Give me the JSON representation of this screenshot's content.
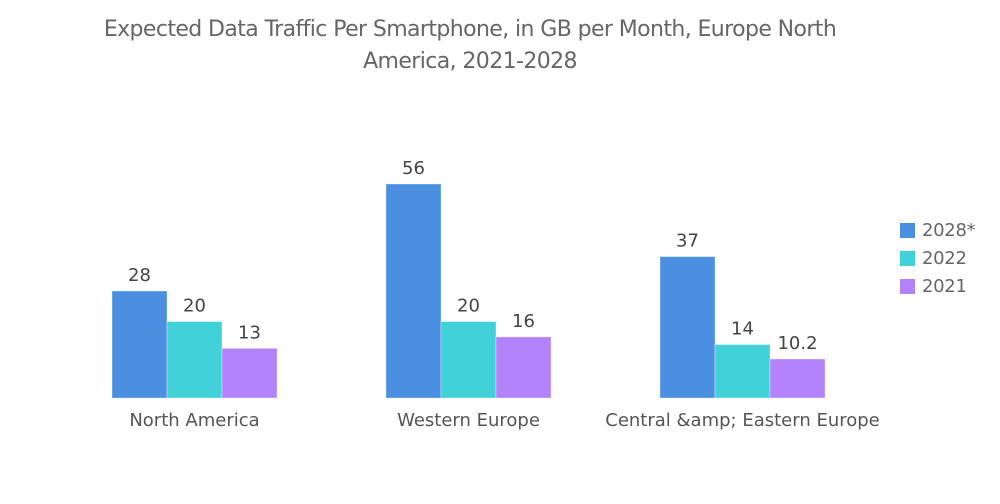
{
  "chart_data": {
    "type": "bar",
    "title": "Expected Data Traffic Per Smartphone, in GB per Month, Europe North America, 2021-2028",
    "title_lines": [
      "Expected Data Traffic Per Smartphone, in GB per Month, Europe North",
      "America, 2021-2028"
    ],
    "categories": [
      "North America",
      "Western Europe",
      "Central &amp; Eastern Europe"
    ],
    "series": [
      {
        "name": "2028*",
        "color": "#4a8fe0",
        "values": [
          28,
          56,
          37
        ],
        "labels": [
          "28",
          "56",
          "37"
        ]
      },
      {
        "name": "2022",
        "color": "#41d1d9",
        "values": [
          20,
          20,
          14
        ],
        "labels": [
          "20",
          "20",
          "14"
        ]
      },
      {
        "name": "2021",
        "color": "#b283fb",
        "values": [
          13,
          16,
          10.2
        ],
        "labels": [
          "13",
          "16",
          "10.2"
        ]
      }
    ],
    "xlabel": "",
    "ylabel": "",
    "ylim": [
      0,
      60
    ],
    "grid": false,
    "y_axis_visible": false,
    "legend": "right"
  }
}
